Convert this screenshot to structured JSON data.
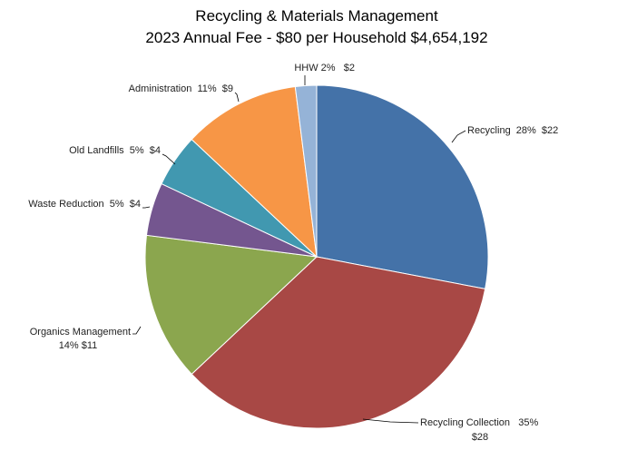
{
  "chart_data": {
    "type": "pie",
    "title": [
      "Recycling & Materials Management",
      "2023 Annual Fee - $80 per Household $4,654,192"
    ],
    "slices": [
      {
        "name": "Recycling",
        "percent": 28,
        "value": 22,
        "label": [
          "Recycling  28%  $22"
        ],
        "color": "#4472A8"
      },
      {
        "name": "Recycling Collection",
        "percent": 35,
        "value": 28,
        "label": [
          "Recycling Collection   35%",
          "$28"
        ],
        "color": "#A84845"
      },
      {
        "name": "Organics Management",
        "percent": 14,
        "value": 11,
        "label": [
          "Organics Management",
          "14% $11"
        ],
        "color": "#8BA64E"
      },
      {
        "name": "Waste Reduction",
        "percent": 5,
        "value": 4,
        "label": [
          "Waste Reduction  5%  $4"
        ],
        "color": "#74568F"
      },
      {
        "name": "Old Landfills",
        "percent": 5,
        "value": 4,
        "label": [
          "Old Landfills  5%  $4"
        ],
        "color": "#4198B0"
      },
      {
        "name": "Administration",
        "percent": 11,
        "value": 9,
        "label": [
          "Administration  11%  $9"
        ],
        "color": "#F79646"
      },
      {
        "name": "HHW",
        "percent": 2,
        "value": 2,
        "label": [
          "HHW 2%   $2"
        ],
        "color": "#95B3D7"
      }
    ]
  }
}
